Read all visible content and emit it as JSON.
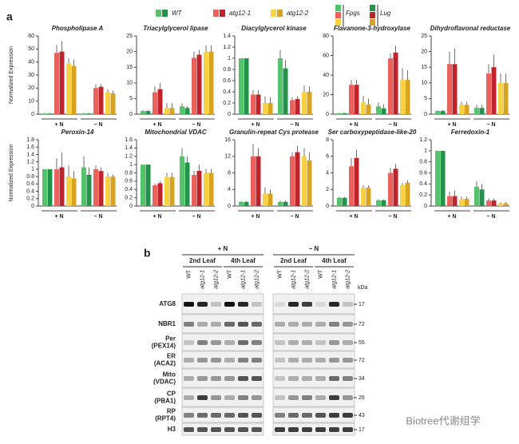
{
  "panels": [
    "a",
    "b"
  ],
  "legend": {
    "genotypes": [
      {
        "name": "WT",
        "colors": [
          "#55c36c",
          "#22944a"
        ]
      },
      {
        "name": "atg12-1",
        "colors": [
          "#ea625b",
          "#bf232b"
        ]
      },
      {
        "name": "atg12-2",
        "colors": [
          "#f8d242",
          "#d8a31f"
        ]
      }
    ],
    "lines": [
      "Fpgs",
      "Lug"
    ]
  },
  "chart_data": [
    {
      "type": "bar",
      "title": "Phospholipase A",
      "ylabel": "Normalized Expression",
      "categories": [
        "+ N",
        "− N"
      ],
      "ylim": [
        0,
        60
      ],
      "yticks": [
        0,
        10,
        20,
        30,
        40,
        50,
        60
      ],
      "values": [
        [
          0.5,
          0.5,
          47,
          48,
          39,
          37
        ],
        [
          0.5,
          0.5,
          20,
          21,
          17,
          16
        ]
      ],
      "errors": [
        [
          0.5,
          0.5,
          6,
          8,
          4,
          5
        ],
        [
          0.5,
          0.5,
          3,
          2,
          2,
          2
        ]
      ]
    },
    {
      "type": "bar",
      "title": "Triacylglycerol lipase",
      "categories": [
        "+ N",
        "− N"
      ],
      "ylim": [
        0,
        25
      ],
      "yticks": [
        0,
        5,
        10,
        15,
        20,
        25
      ],
      "values": [
        [
          1,
          1,
          7,
          8,
          2,
          2
        ],
        [
          2.5,
          2,
          18,
          19,
          20,
          20
        ]
      ],
      "errors": [
        [
          0.3,
          0.3,
          2,
          2,
          1.5,
          1.5
        ],
        [
          1,
          0.5,
          2,
          1.5,
          2,
          2
        ]
      ]
    },
    {
      "type": "bar",
      "title": "Diacylglycerol kinase",
      "categories": [
        "+ N",
        "− N"
      ],
      "ylim": [
        0,
        1.4
      ],
      "yticks": [
        0,
        0.2,
        0.4,
        0.6,
        0.8,
        1,
        1.2,
        1.4
      ],
      "values": [
        [
          1,
          1,
          0.35,
          0.35,
          0.2,
          0.2
        ],
        [
          1,
          0.82,
          0.25,
          0.27,
          0.4,
          0.4
        ]
      ],
      "errors": [
        [
          0,
          0,
          0.08,
          0.08,
          0.12,
          0.1
        ],
        [
          0.15,
          0.15,
          0.05,
          0.05,
          0.12,
          0.1
        ]
      ]
    },
    {
      "type": "bar",
      "title": "Flavanone-3-hydroxylase",
      "categories": [
        "+ N",
        "− N"
      ],
      "ylim": [
        0,
        80
      ],
      "yticks": [
        0,
        20,
        40,
        60,
        80
      ],
      "values": [
        [
          1,
          1,
          30,
          30,
          12,
          10
        ],
        [
          8,
          6,
          57,
          63,
          35,
          35
        ]
      ],
      "errors": [
        [
          0.5,
          0.5,
          5,
          5,
          7,
          6
        ],
        [
          4,
          4,
          5,
          7,
          12,
          10
        ]
      ]
    },
    {
      "type": "bar",
      "title": "Dihydroflavonal reductase",
      "categories": [
        "+ N",
        "− N"
      ],
      "ylim": [
        0,
        25
      ],
      "yticks": [
        0,
        5,
        10,
        15,
        20,
        25
      ],
      "values": [
        [
          1,
          1,
          16,
          16,
          3,
          3
        ],
        [
          2,
          2,
          13,
          15,
          10,
          10
        ]
      ],
      "errors": [
        [
          0.3,
          0.3,
          4,
          5,
          1,
          1
        ],
        [
          1,
          1,
          3,
          4,
          3,
          3
        ]
      ]
    },
    {
      "type": "bar",
      "title": "Peroxin-14",
      "ylabel": "Normalized Expression",
      "categories": [
        "+ N",
        "− N"
      ],
      "ylim": [
        0,
        1.8
      ],
      "yticks": [
        0,
        0.2,
        0.4,
        0.6,
        0.8,
        1,
        1.2,
        1.4,
        1.6,
        1.8
      ],
      "values": [
        [
          1,
          1,
          1,
          1.05,
          0.8,
          0.75
        ],
        [
          1.05,
          0.85,
          1,
          0.95,
          0.8,
          0.8
        ]
      ],
      "errors": [
        [
          0,
          0,
          0.3,
          0.4,
          0.3,
          0.2
        ],
        [
          0.3,
          0.2,
          0.1,
          0.1,
          0.1,
          0.05
        ]
      ]
    },
    {
      "type": "bar",
      "title": "Mitochondrial VDAC",
      "categories": [
        "+ N",
        "− N"
      ],
      "ylim": [
        0,
        1.6
      ],
      "yticks": [
        0,
        0.2,
        0.4,
        0.6,
        0.8,
        1,
        1.2,
        1.4,
        1.6
      ],
      "values": [
        [
          1,
          1,
          0.5,
          0.55,
          0.7,
          0.7
        ],
        [
          1.2,
          1.05,
          0.75,
          0.85,
          0.8,
          0.8
        ]
      ],
      "errors": [
        [
          0,
          0,
          0.05,
          0.05,
          0.1,
          0.1
        ],
        [
          0.2,
          0.15,
          0.1,
          0.15,
          0.1,
          0.1
        ]
      ]
    },
    {
      "type": "bar",
      "title": "Granulin-repeat Cys protease",
      "categories": [
        "+ N",
        "− N"
      ],
      "ylim": [
        0,
        16
      ],
      "yticks": [
        0,
        4,
        8,
        12,
        16
      ],
      "values": [
        [
          1,
          1,
          12,
          12,
          3,
          3
        ],
        [
          1,
          1,
          12,
          13,
          12,
          11
        ]
      ],
      "errors": [
        [
          0.2,
          0.2,
          3,
          2,
          1.5,
          1
        ],
        [
          0.3,
          0.3,
          1,
          1.5,
          2,
          2
        ]
      ]
    },
    {
      "type": "bar",
      "title": "Ser carboxypeptidase-like-20",
      "categories": [
        "+ N",
        "− N"
      ],
      "ylim": [
        0,
        8
      ],
      "yticks": [
        0,
        2,
        4,
        6,
        8
      ],
      "values": [
        [
          1,
          1,
          4.8,
          5.8,
          2.2,
          2.2
        ],
        [
          0.7,
          0.7,
          4,
          4.5,
          2.5,
          2.8
        ]
      ],
      "errors": [
        [
          0.1,
          0.1,
          1,
          1,
          0.3,
          0.3
        ],
        [
          0.1,
          0.1,
          0.6,
          0.6,
          0.3,
          0.3
        ]
      ]
    },
    {
      "type": "bar",
      "title": "Ferredoxin-1",
      "categories": [
        "+ N",
        "− N"
      ],
      "ylim": [
        0,
        1.2
      ],
      "yticks": [
        0,
        0.2,
        0.4,
        0.6,
        0.8,
        1,
        1.2
      ],
      "values": [
        [
          1,
          1,
          0.18,
          0.18,
          0.13,
          0.13
        ],
        [
          0.35,
          0.3,
          0.1,
          0.1,
          0.05,
          0.05
        ]
      ],
      "errors": [
        [
          0,
          0,
          0.08,
          0.1,
          0.04,
          0.04
        ],
        [
          0.1,
          0.1,
          0.04,
          0.04,
          0.02,
          0.02
        ]
      ]
    }
  ],
  "blot": {
    "conditions": [
      "+ N",
      "− N"
    ],
    "leaves": [
      "2nd Leaf",
      "4th Leaf",
      "2nd Leaf",
      "4th Leaf"
    ],
    "lanes": [
      "WT",
      "atg12-1",
      "atg12-2",
      "WT",
      "atg12-1",
      "atg12-2",
      "WT",
      "atg12-1",
      "atg12-2",
      "WT",
      "atg12-1",
      "atg12-2"
    ],
    "kda_unit": "kDa",
    "rows": [
      {
        "label": [
          "ATG8"
        ],
        "kda": "17"
      },
      {
        "label": [
          "NBR1"
        ],
        "kda": "72"
      },
      {
        "label": [
          "Per",
          "(PEX14)"
        ],
        "kda": "55"
      },
      {
        "label": [
          "ER",
          "(ACA2)"
        ],
        "kda": "72"
      },
      {
        "label": [
          "Mito",
          "(VDAC)"
        ],
        "kda": "34"
      },
      {
        "label": [
          "CP",
          "(PBA1)"
        ],
        "kda": "26"
      },
      {
        "label": [
          "RP",
          "(RPT4)"
        ],
        "kda": "43"
      },
      {
        "label": [
          "H3"
        ],
        "kda": "17"
      }
    ]
  },
  "watermark": "Biotree代谢组学"
}
